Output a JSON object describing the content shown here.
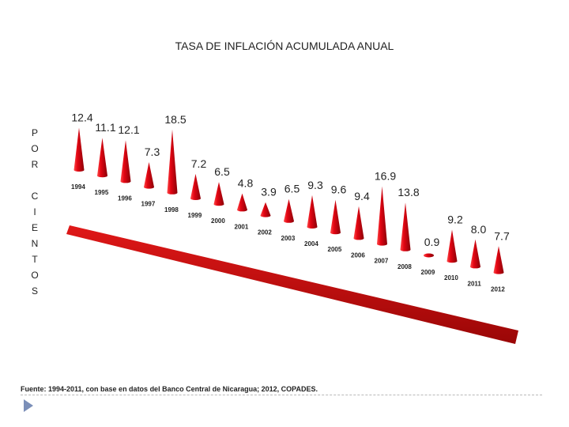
{
  "colors": {
    "cone": "#e30613",
    "cone_dark": "#8a0008",
    "base": "#c10a0a"
  },
  "chart_data": {
    "type": "bar",
    "title": "TASA DE INFLACIÓN ACUMULADA ANUAL",
    "ylabel": [
      "P",
      "O",
      "R",
      "",
      "C",
      "I",
      "E",
      "N",
      "T",
      "O",
      "S"
    ],
    "categories": [
      "1994",
      "1995",
      "1996",
      "1997",
      "1998",
      "1999",
      "2000",
      "2001",
      "2002",
      "2003",
      "2004",
      "2005",
      "2006",
      "2007",
      "2008",
      "2009",
      "2010",
      "2011",
      "2012"
    ],
    "values": [
      12.4,
      11.1,
      12.1,
      7.3,
      18.5,
      7.2,
      6.5,
      4.8,
      3.9,
      6.5,
      9.3,
      9.6,
      9.4,
      16.9,
      13.8,
      0.9,
      9.2,
      8.0,
      7.7
    ],
    "value_labels": [
      "12.4",
      "11.1",
      "12.1",
      "7.3",
      "18.5",
      "7.2",
      "6.5",
      "4.8",
      "3.9",
      "6.5",
      "9.3",
      "9.6",
      "9.4",
      "16.9",
      "13.8",
      "0.9",
      "9.2",
      "8.0",
      "7.7"
    ],
    "legend": "none",
    "grid": false
  },
  "source_text": "Fuente: 1994-2011, con base en datos del Banco Central de Nicaragua; 2012, COPADES."
}
